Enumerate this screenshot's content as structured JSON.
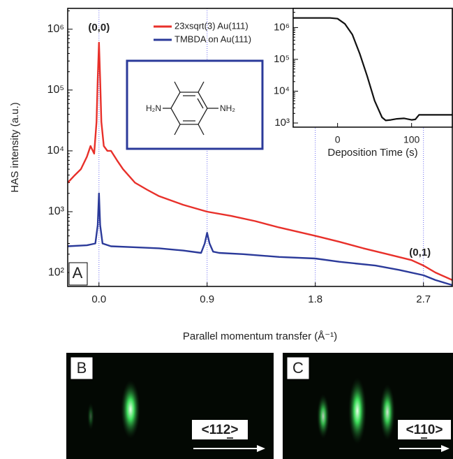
{
  "chart_data": [
    {
      "type": "line",
      "scale": "log",
      "grid": true,
      "legend": "upper center",
      "ylabel": "HAS intensity (a.u.)",
      "xlabel": "Parallel momentum transfer (Å⁻¹)",
      "xlim": [
        -0.26,
        2.94
      ],
      "ylim": [
        59,
        2200000
      ],
      "xticks": [
        {
          "value": 0,
          "label": "0.0"
        },
        0.9,
        1.8,
        2.7
      ],
      "yticks": [
        {
          "value": 100,
          "label": "10²"
        },
        {
          "value": 1000,
          "label": "10³"
        },
        {
          "value": 10000,
          "label": "10⁴"
        },
        {
          "value": 100000,
          "label": "10⁵"
        },
        {
          "value": 1000000,
          "label": "10⁶"
        }
      ],
      "annotations": [
        "(0,0)",
        "(0,1)",
        "A"
      ],
      "series": [
        {
          "name": "23xsqrt(3)  Au(111)",
          "color": "#e8302a",
          "x": [
            -0.26,
            -0.2,
            -0.15,
            -0.1,
            -0.07,
            -0.04,
            -0.02,
            -0.01,
            0,
            0.01,
            0.02,
            0.04,
            0.07,
            0.1,
            0.15,
            0.2,
            0.3,
            0.4,
            0.5,
            0.7,
            0.9,
            1.1,
            1.3,
            1.5,
            1.8,
            2.0,
            2.2,
            2.4,
            2.6,
            2.7,
            2.8,
            2.94
          ],
          "values": [
            3000,
            4000,
            5000,
            8000,
            12000,
            9000,
            30000,
            150000,
            600000,
            150000,
            30000,
            12000,
            10000,
            10000,
            7000,
            5000,
            3000,
            2300,
            1800,
            1300,
            1000,
            850,
            700,
            550,
            400,
            320,
            250,
            200,
            160,
            130,
            100,
            75
          ]
        },
        {
          "name": "TMBDA on Au(111)",
          "color": "#2b3a9a",
          "x": [
            -0.26,
            -0.1,
            -0.03,
            -0.01,
            0,
            0.01,
            0.03,
            0.1,
            0.3,
            0.5,
            0.7,
            0.85,
            0.88,
            0.9,
            0.92,
            0.95,
            1.0,
            1.2,
            1.5,
            1.8,
            2.0,
            2.3,
            2.5,
            2.7,
            2.8,
            2.94
          ],
          "values": [
            270,
            280,
            300,
            600,
            2000,
            600,
            300,
            270,
            260,
            250,
            230,
            210,
            300,
            450,
            300,
            220,
            210,
            200,
            180,
            170,
            150,
            130,
            110,
            90,
            75,
            62
          ]
        }
      ]
    },
    {
      "type": "line",
      "scale": "log",
      "xlabel": "Deposition Time (s)",
      "xlim": [
        -60,
        155
      ],
      "ylim": [
        740,
        4000000
      ],
      "xticks": [
        0,
        100
      ],
      "yticks": [
        {
          "value": 1000,
          "label": "10³"
        },
        {
          "value": 10000,
          "label": "10⁴"
        },
        {
          "value": 100000,
          "label": "10⁵"
        },
        {
          "value": 1000000,
          "label": "10⁶"
        }
      ],
      "series": [
        {
          "color": "#111111",
          "x": [
            -60,
            -10,
            0,
            10,
            20,
            30,
            40,
            50,
            60,
            65,
            72,
            80,
            90,
            100,
            105,
            110,
            130,
            155
          ],
          "values": [
            2000000,
            2000000,
            1900000,
            1300000,
            600000,
            150000,
            30000,
            5000,
            1500,
            1200,
            1250,
            1350,
            1400,
            1250,
            1300,
            1800,
            1800,
            1800
          ]
        }
      ]
    }
  ],
  "molecule": {
    "left": "H₂N",
    "right": "NH₂"
  },
  "panels": [
    {
      "label": "B",
      "direction": "<112>"
    },
    {
      "label": "C",
      "direction": "<110>"
    }
  ]
}
